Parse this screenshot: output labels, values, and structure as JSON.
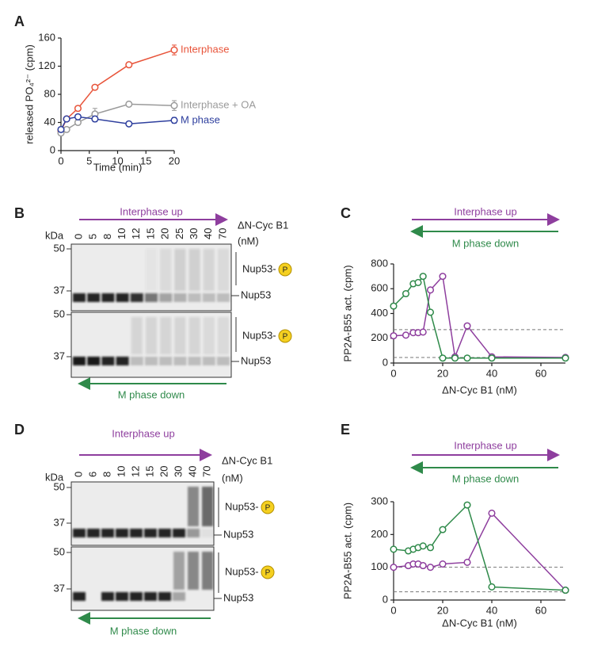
{
  "chart_data": [
    {
      "type": "line",
      "panel": "A",
      "x_label": "Time (min)",
      "y_label": "released PO₄²⁻ (cpm)",
      "x": [
        0,
        1,
        3,
        6,
        12,
        20
      ],
      "xlim": [
        0,
        20
      ],
      "xticks": [
        0,
        5,
        10,
        15,
        20
      ],
      "ylim": [
        0,
        160
      ],
      "yticks": [
        0,
        40,
        80,
        120,
        160
      ],
      "series": [
        {
          "name": "Interphase",
          "color": "#e8543a",
          "values": [
            28,
            45,
            60,
            90,
            122,
            143
          ],
          "errors": [
            3,
            3,
            3,
            2,
            2,
            7
          ]
        },
        {
          "name": "Interphase + OA",
          "color": "#9a9a9a",
          "values": [
            25,
            30,
            40,
            52,
            66,
            64
          ],
          "errors": [
            2,
            2,
            3,
            8,
            3,
            7
          ]
        },
        {
          "name": "M phase",
          "color": "#2e3f9e",
          "values": [
            30,
            45,
            48,
            45,
            38,
            43
          ],
          "errors": [
            3,
            3,
            3,
            4,
            3,
            4
          ]
        }
      ]
    },
    {
      "type": "line",
      "panel": "C",
      "x_label": "ΔN-Cyc B1 (nM)",
      "y_label": "PP2A-B55 act. (cpm)",
      "x": [
        0,
        5,
        8,
        10,
        12,
        15,
        20,
        25,
        30,
        40,
        70
      ],
      "xlim": [
        0,
        70
      ],
      "xticks": [
        0,
        20,
        40,
        60
      ],
      "ylim": [
        0,
        800
      ],
      "yticks": [
        0,
        200,
        400,
        600,
        800
      ],
      "reference_lines": [
        270,
        45
      ],
      "series": [
        {
          "name": "Interphase up",
          "color": "#8e3e9e",
          "values": [
            220,
            225,
            245,
            245,
            250,
            590,
            700,
            50,
            300,
            50,
            45
          ]
        },
        {
          "name": "M phase down",
          "color": "#2f8a4a",
          "values": [
            460,
            560,
            640,
            650,
            700,
            410,
            40,
            40,
            40,
            40,
            40
          ]
        }
      ]
    },
    {
      "type": "line",
      "panel": "E",
      "x_label": "ΔN-Cyc B1 (nM)",
      "y_label": "PP2A-B55 act. (cpm)",
      "x": [
        0,
        6,
        8,
        10,
        12,
        15,
        20,
        30,
        40,
        70
      ],
      "xlim": [
        0,
        70
      ],
      "xticks": [
        0,
        20,
        40,
        60
      ],
      "ylim": [
        0,
        300
      ],
      "yticks": [
        0,
        100,
        200,
        300
      ],
      "reference_lines": [
        100,
        25
      ],
      "series": [
        {
          "name": "Interphase up",
          "color": "#8e3e9e",
          "values": [
            100,
            105,
            110,
            110,
            105,
            100,
            110,
            115,
            265,
            30
          ]
        },
        {
          "name": "M phase down",
          "color": "#2f8a4a",
          "values": [
            155,
            150,
            155,
            160,
            165,
            160,
            215,
            290,
            40,
            30
          ]
        }
      ]
    }
  ],
  "blots": [
    {
      "panel": "B",
      "top_arrow": "Interphase up",
      "bottom_arrow": "M phase down",
      "lane_title": "ΔN-Cyc B1",
      "lane_unit": "(nM)",
      "kda": "kDa",
      "lanes": [
        0,
        5,
        8,
        10,
        12,
        15,
        20,
        25,
        30,
        40,
        70
      ],
      "markers": [
        50,
        37
      ],
      "band_phospho": "Nup53-",
      "phospho": "P",
      "band": "Nup53"
    },
    {
      "panel": "D",
      "top_arrow": "Interphase up",
      "bottom_arrow": "M phase down",
      "lane_title": "ΔN-Cyc B1",
      "lane_unit": "(nM)",
      "kda": "kDa",
      "lanes": [
        0,
        6,
        8,
        10,
        12,
        15,
        20,
        30,
        40,
        70
      ],
      "markers": [
        50,
        37
      ],
      "band_phospho": "Nup53-",
      "phospho": "P",
      "band": "Nup53"
    }
  ]
}
